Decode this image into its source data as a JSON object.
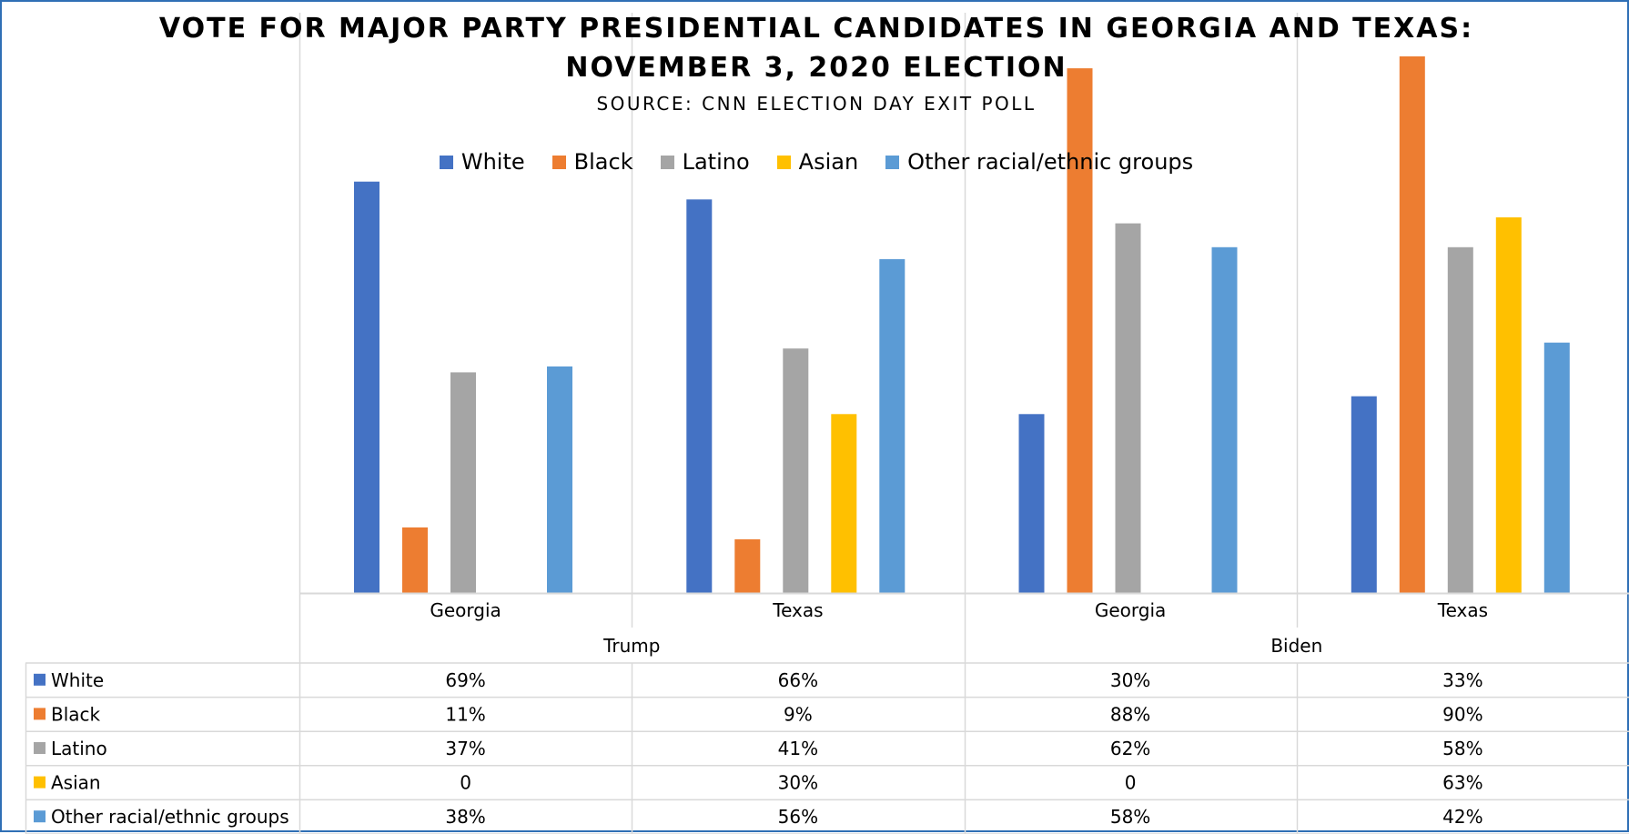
{
  "chart_data": {
    "type": "bar",
    "title": "VOTE FOR MAJOR PARTY PRESIDENTIAL CANDIDATES IN GEORGIA AND TEXAS:",
    "title_line2": "NOVEMBER 3, 2020 ELECTION",
    "subtitle": "SOURCE: CNN ELECTION DAY EXIT POLL",
    "categories": [
      "Georgia",
      "Texas",
      "Georgia",
      "Texas"
    ],
    "groups": [
      {
        "label": "Trump",
        "span": [
          0,
          1
        ]
      },
      {
        "label": "Biden",
        "span": [
          2,
          3
        ]
      }
    ],
    "series": [
      {
        "name": "White",
        "color": "#4472c4",
        "values": [
          69,
          66,
          30,
          33
        ],
        "labels": [
          "69%",
          "66%",
          "30%",
          "33%"
        ]
      },
      {
        "name": "Black",
        "color": "#ed7d31",
        "values": [
          11,
          9,
          88,
          90
        ],
        "labels": [
          "11%",
          "9%",
          "88%",
          "90%"
        ]
      },
      {
        "name": "Latino",
        "color": "#a5a5a5",
        "values": [
          37,
          41,
          62,
          58
        ],
        "labels": [
          "37%",
          "41%",
          "62%",
          "58%"
        ]
      },
      {
        "name": "Asian",
        "color": "#ffc000",
        "values": [
          0,
          30,
          0,
          63
        ],
        "labels": [
          "0",
          "30%",
          "0",
          "63%"
        ]
      },
      {
        "name": "Other racial/ethnic groups",
        "color": "#5b9bd5",
        "values": [
          38,
          56,
          58,
          42
        ],
        "labels": [
          "38%",
          "56%",
          "58%",
          "42%"
        ]
      }
    ],
    "ylim": [
      0,
      90
    ],
    "grid": "vertical-category-lines",
    "legend": "top-center",
    "data_table": true
  }
}
